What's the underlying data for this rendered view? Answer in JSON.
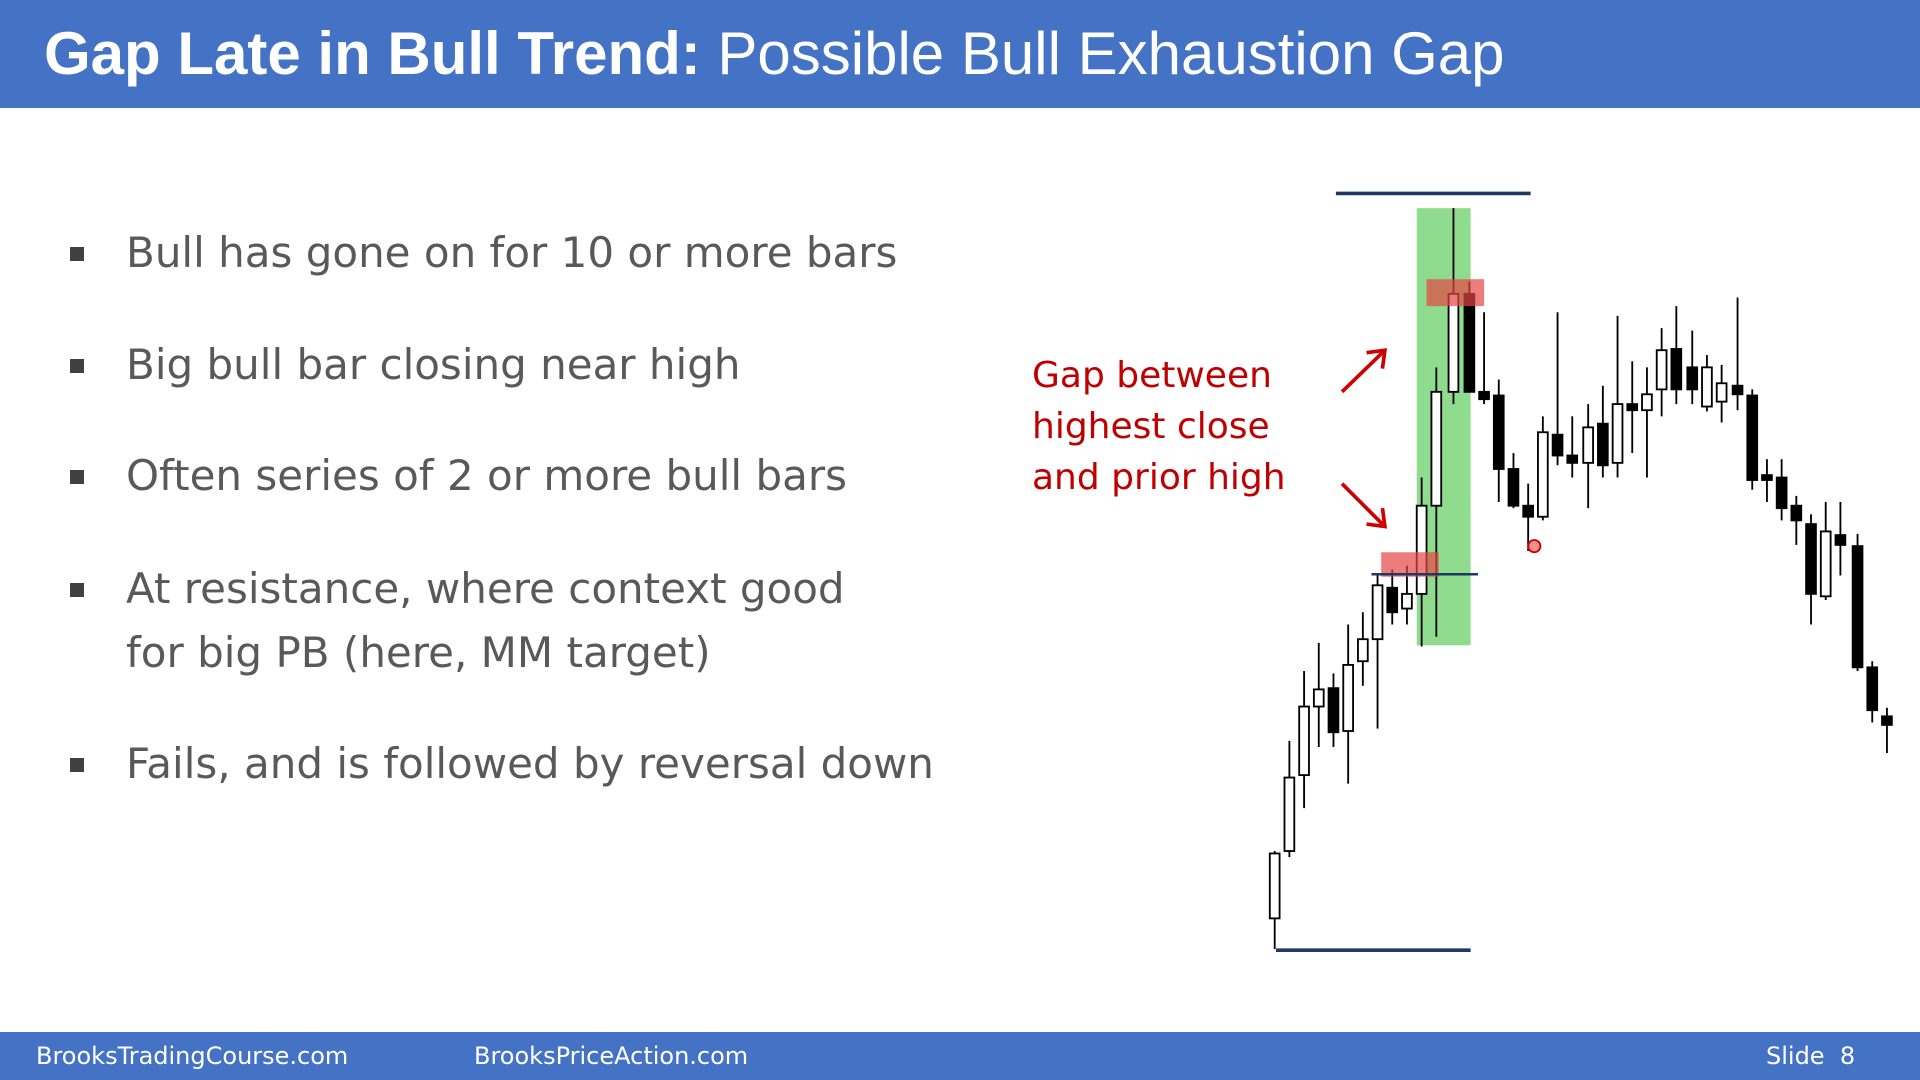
{
  "header": {
    "title_bold": "Gap Late in Bull Trend:",
    "title_rest": "Possible Bull Exhaustion Gap"
  },
  "bullets": [
    {
      "lines": [
        "Bull has gone on for 10 or more bars"
      ]
    },
    {
      "lines": [
        "Big bull bar closing near high"
      ]
    },
    {
      "lines": [
        "Often series of 2 or more bull bars"
      ]
    },
    {
      "lines": [
        "At resistance, where context good",
        "for big PB (here, MM target)"
      ]
    },
    {
      "lines": [
        "Fails, and is followed by reversal down"
      ]
    }
  ],
  "annotation": {
    "lines": [
      "Gap between",
      "highest close",
      "and prior high"
    ]
  },
  "footer": {
    "left": "BrooksTradingCourse.com",
    "center": "BrooksPriceAction.com",
    "slide": "Slide  8"
  }
}
